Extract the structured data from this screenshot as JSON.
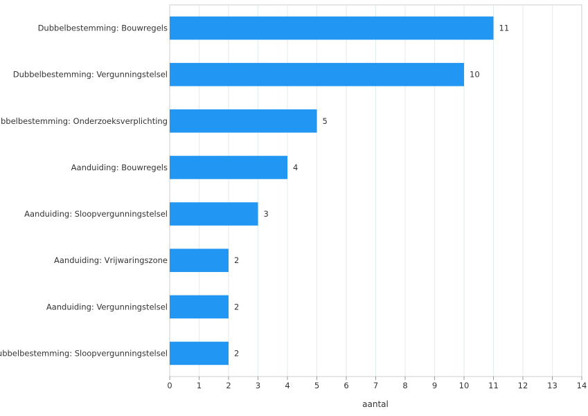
{
  "chart_data": {
    "type": "bar",
    "orientation": "horizontal",
    "categories": [
      "Dubbelbestemming: Bouwregels",
      "Dubbelbestemming: Vergunningstelsel",
      "Dubbelbestemming: Onderzoeksverplichting",
      "Aanduiding: Bouwregels",
      "Aanduiding: Sloopvergunningstelsel",
      "Aanduiding: Vrijwaringszone",
      "Aanduiding: Vergunningstelsel",
      "Dubbelbestemming: Sloopvergunningstelsel"
    ],
    "values": [
      11,
      10,
      5,
      4,
      3,
      2,
      2,
      2
    ],
    "data_labels": [
      "11",
      "10",
      "5",
      "4",
      "3",
      "2",
      "2",
      "2"
    ],
    "xlabel": "aantal",
    "ylabel": "",
    "xlim": [
      0,
      14
    ],
    "x_ticks": [
      "0",
      "1",
      "2",
      "3",
      "4",
      "5",
      "6",
      "7",
      "8",
      "9",
      "10",
      "11",
      "12",
      "13",
      "14"
    ],
    "grid": true,
    "legend": "none",
    "bar_color": "#2196f3",
    "grid_color": "#dfeee6",
    "frame_color": "#cccccc"
  }
}
